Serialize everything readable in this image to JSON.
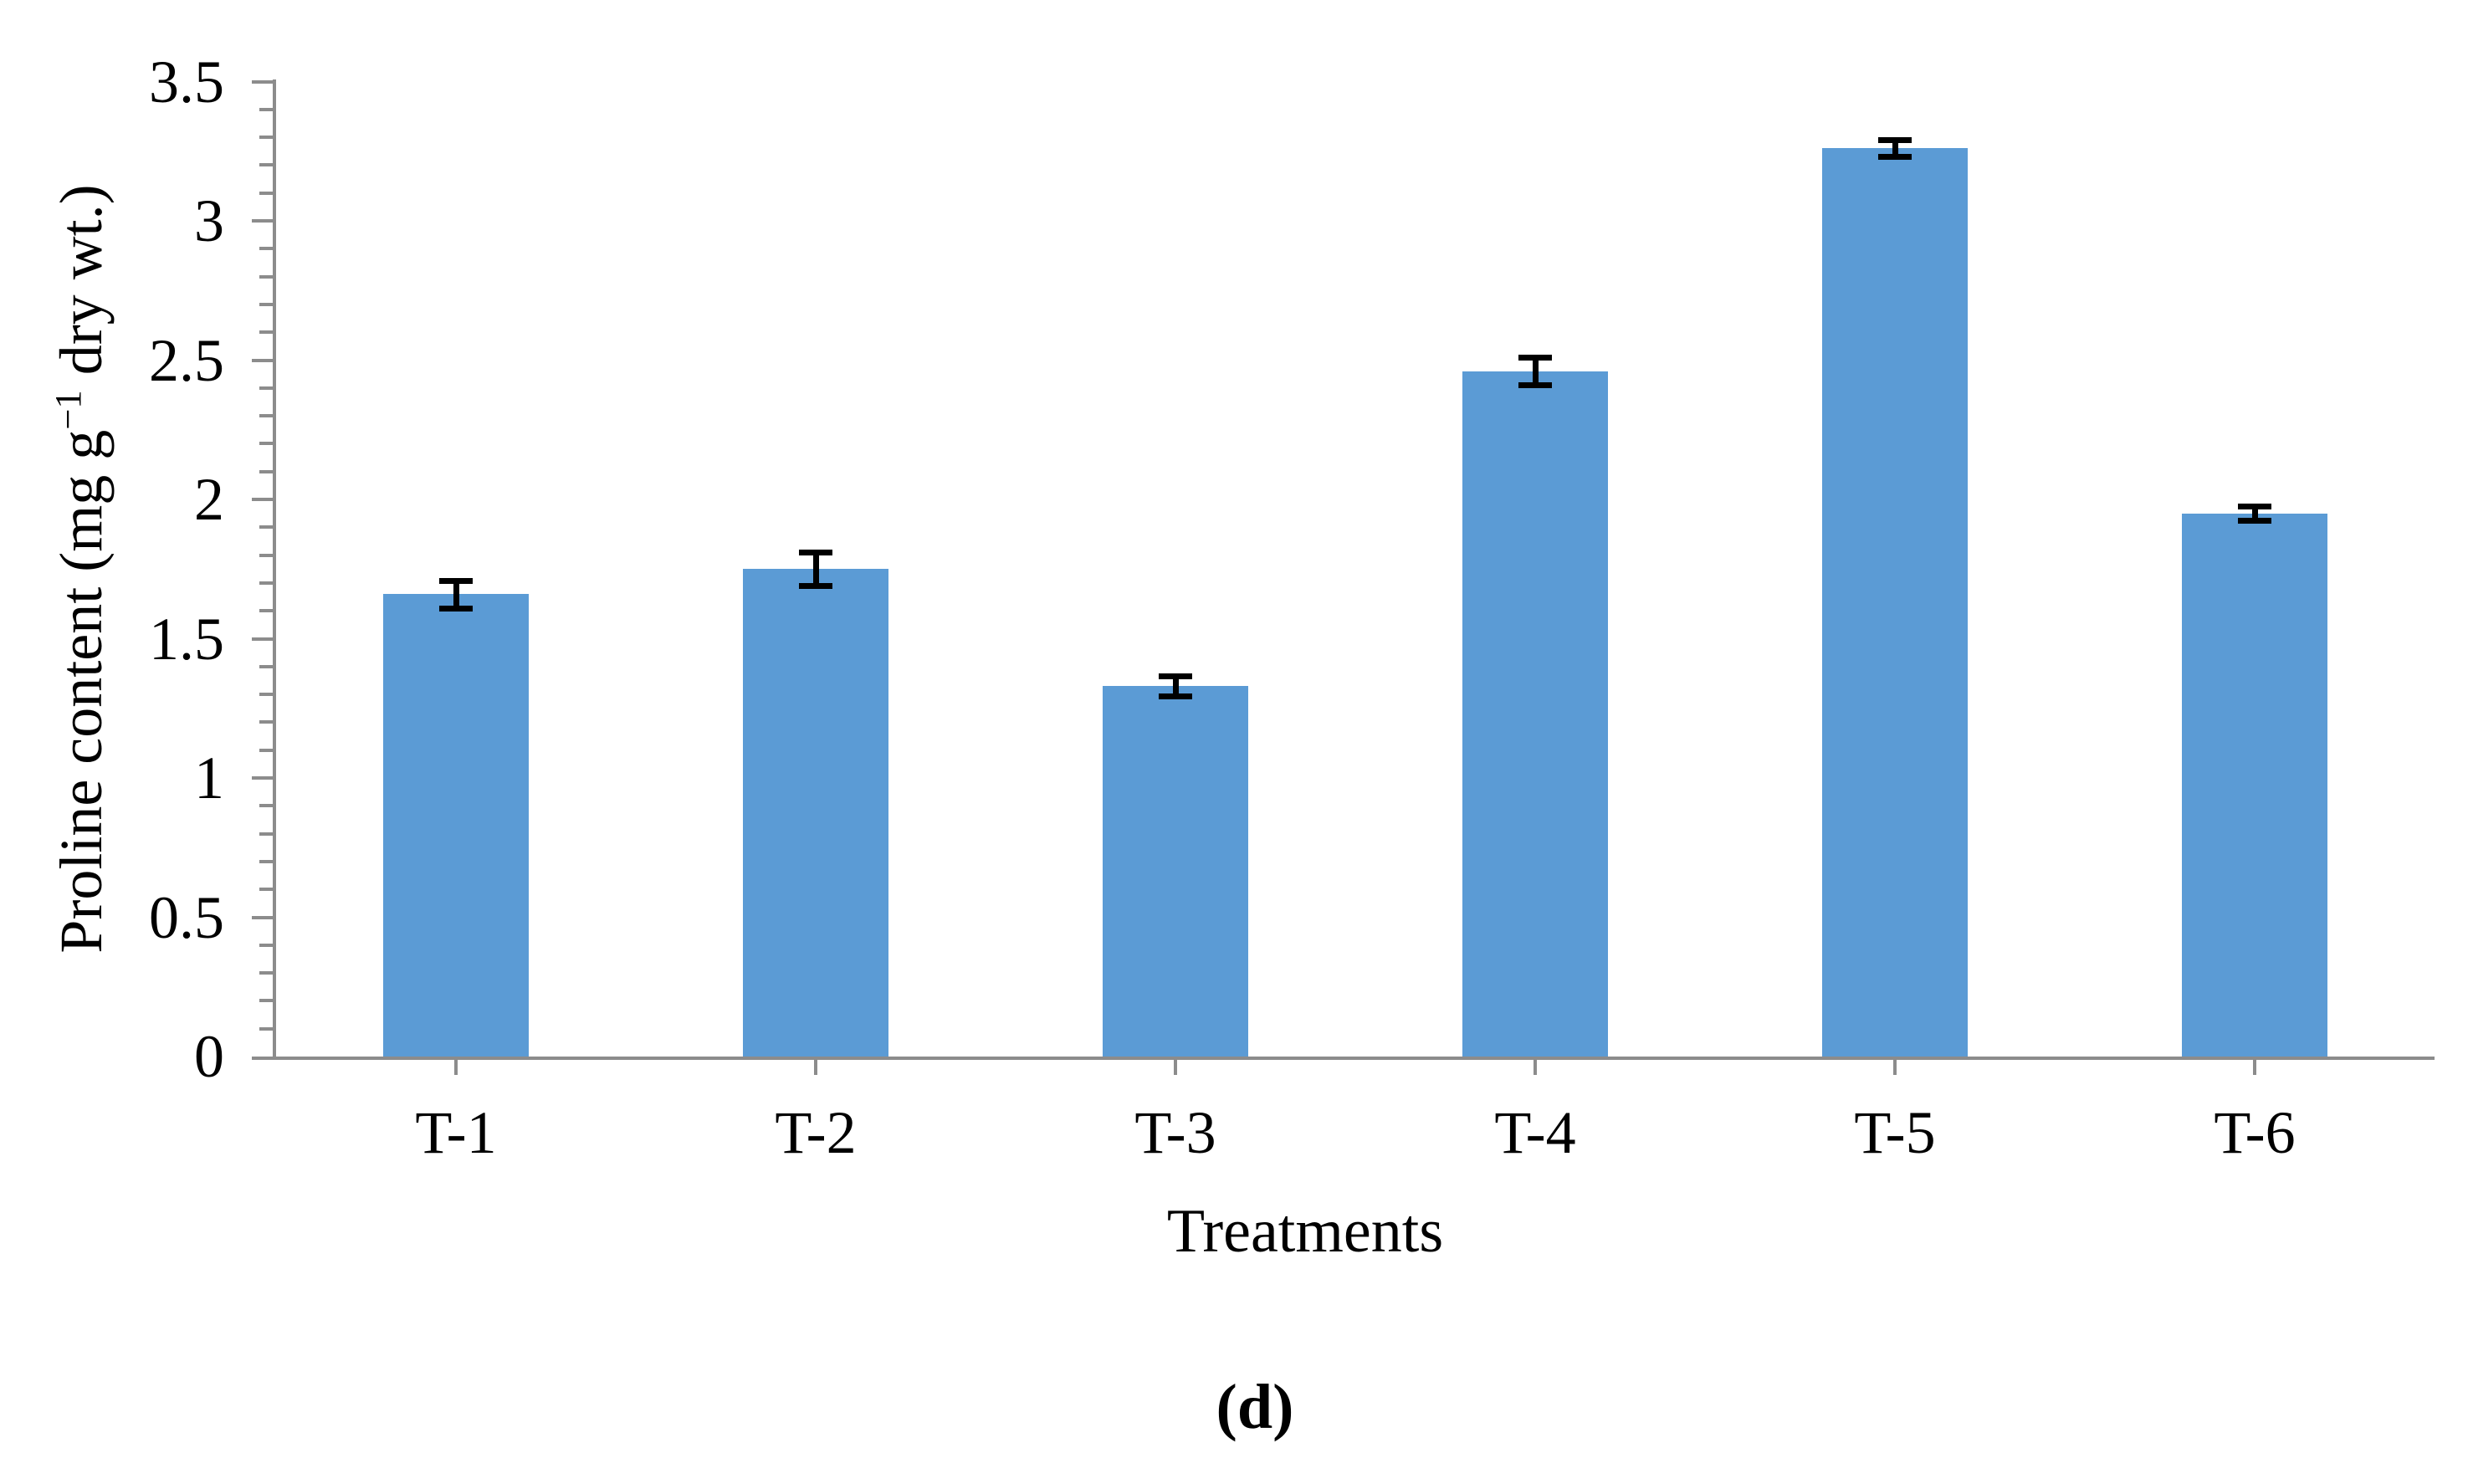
{
  "figure": {
    "panel_label": "(d)",
    "background_color": "#FFFFFF"
  },
  "chart_data": {
    "type": "bar",
    "title": "",
    "categories": [
      "T-1",
      "T-2",
      "T-3",
      "T-4",
      "T-5",
      "T-6"
    ],
    "values": [
      1.66,
      1.75,
      1.33,
      2.46,
      3.26,
      1.95
    ],
    "error_bars_plus_minus": [
      0.05,
      0.06,
      0.035,
      0.05,
      0.03,
      0.025
    ],
    "xlabel": "Treatments",
    "ylabel": "Proline content (mg g−1 dry wt.)",
    "ylabel_parts": {
      "pre": "Proline content (mg g",
      "sup": "−1",
      "post": " dry wt.)"
    },
    "ylim": [
      0,
      3.5
    ],
    "y_major_tick_step": 0.5,
    "y_minor_tick_step": 0.1,
    "y_tick_labels": [
      "0",
      "0.5",
      "1",
      "1.5",
      "2",
      "2.5",
      "3",
      "3.5"
    ],
    "grid": false,
    "legend": "none",
    "bar_color": "#5B9BD5",
    "error_bar_color": "#000000",
    "axis_color": "#8C8C8C",
    "text_color": "#000000"
  }
}
